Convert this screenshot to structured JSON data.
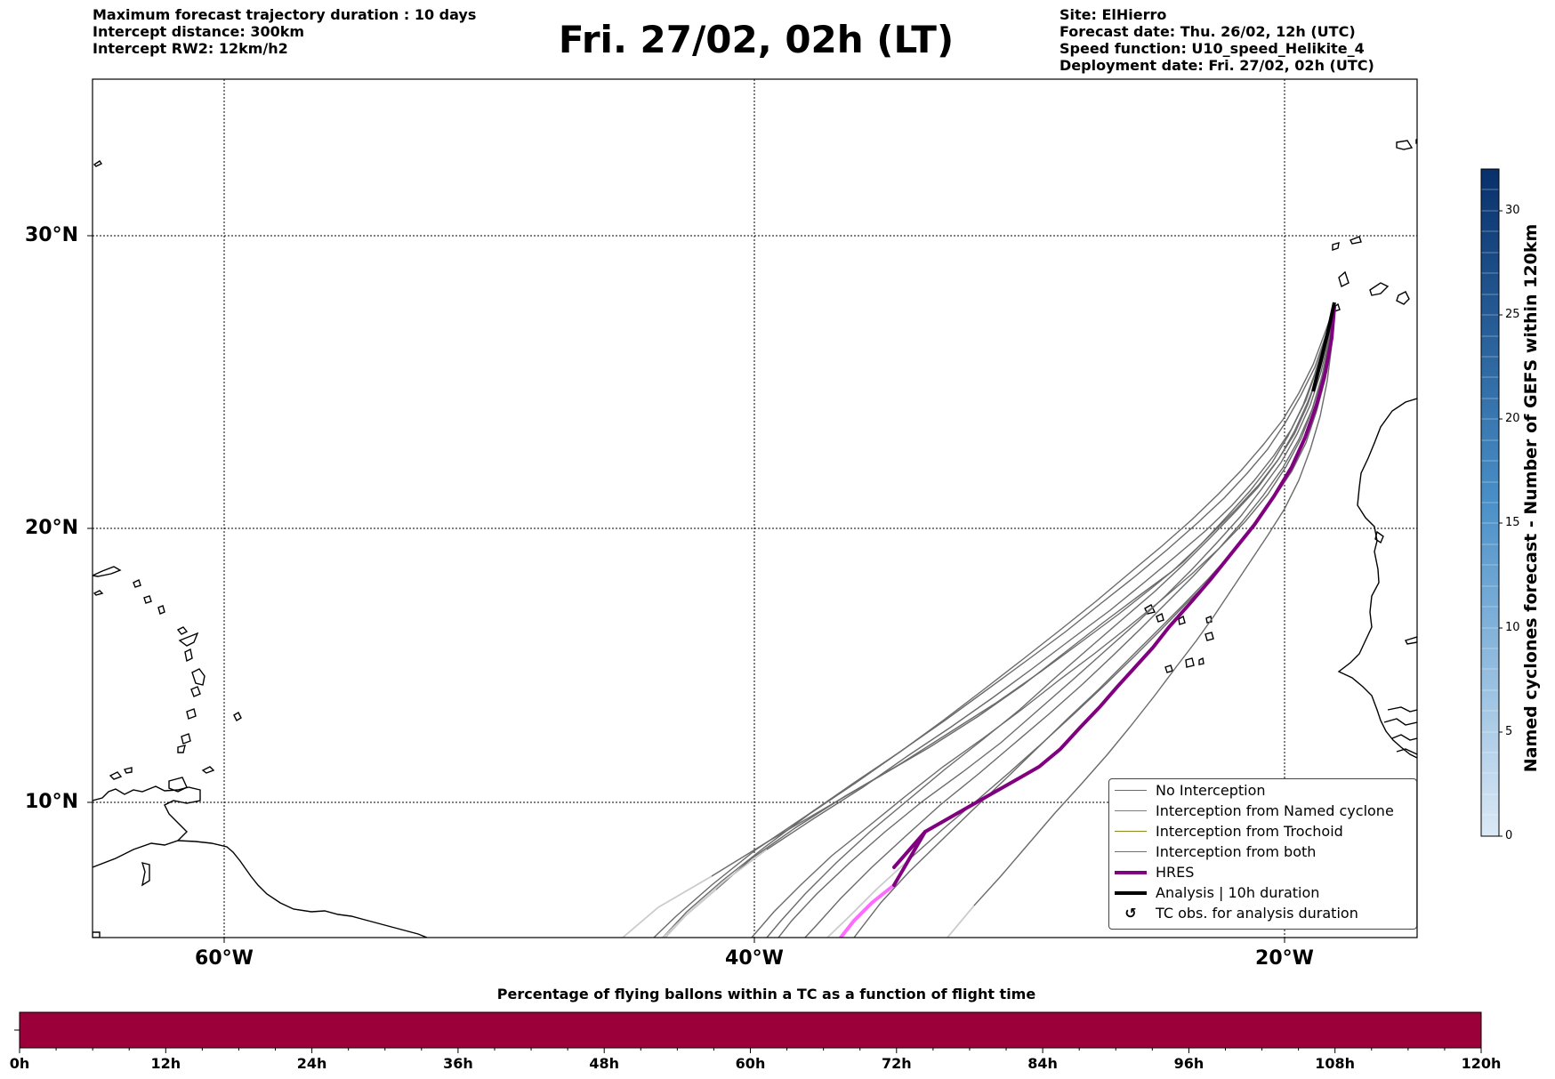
{
  "header_left": [
    "Maximum forecast trajectory duration : 10 days",
    "Intercept distance: 300km",
    "Intercept RW2: 12km/h2"
  ],
  "title": "Fri. 27/02, 02h (LT)",
  "header_right": [
    "Site: ElHierro",
    "Forecast date: Thu. 26/02, 12h (UTC)",
    "Speed function: U10_speed_Helikite_4",
    "Deployment date: Fri. 27/02, 02h (UTC)"
  ],
  "map": {
    "lat_labels": [
      "30°N",
      "20°N",
      "10°N"
    ],
    "lon_labels": [
      "60°W",
      "40°W",
      "20°W"
    ],
    "extent": {
      "lon_min": -65,
      "lon_max": -15,
      "lat_min": 5,
      "lat_max": 36
    }
  },
  "legend": [
    {
      "label": "No Interception",
      "color": "#6b6b6b",
      "style": "thin"
    },
    {
      "label": "Interception from Named cyclone",
      "color": "#e8562a",
      "style": "thin"
    },
    {
      "label": "Interception from Trochoid",
      "color": "#8c8c1e",
      "style": "thin"
    },
    {
      "label": "Interception from both",
      "color": "#2ca02c",
      "style": "thin"
    },
    {
      "label": "HRES",
      "color": "#800080",
      "style": "thick"
    },
    {
      "label": "Analysis | 10h duration",
      "color": "#000000",
      "style": "thick"
    },
    {
      "label": "TC obs. for analysis duration",
      "color": "#000000",
      "style": "symbol",
      "symbol": "↺"
    }
  ],
  "colorbar": {
    "title": "Named cyclones forecast - Number of GEFS within 120km",
    "ticks": [
      "0",
      "5",
      "10",
      "15",
      "20",
      "25",
      "30"
    ],
    "min": 0,
    "max": 32,
    "color_low": "#dce9f6",
    "color_high": "#08306b"
  },
  "time_bar": {
    "title": "Percentage of flying ballons within a TC as a function of flight time",
    "labels": [
      "0h",
      "12h",
      "24h",
      "36h",
      "48h",
      "60h",
      "72h",
      "84h",
      "96h",
      "108h",
      "120h"
    ],
    "fill_color": "#9b003a",
    "percentage": 100
  }
}
